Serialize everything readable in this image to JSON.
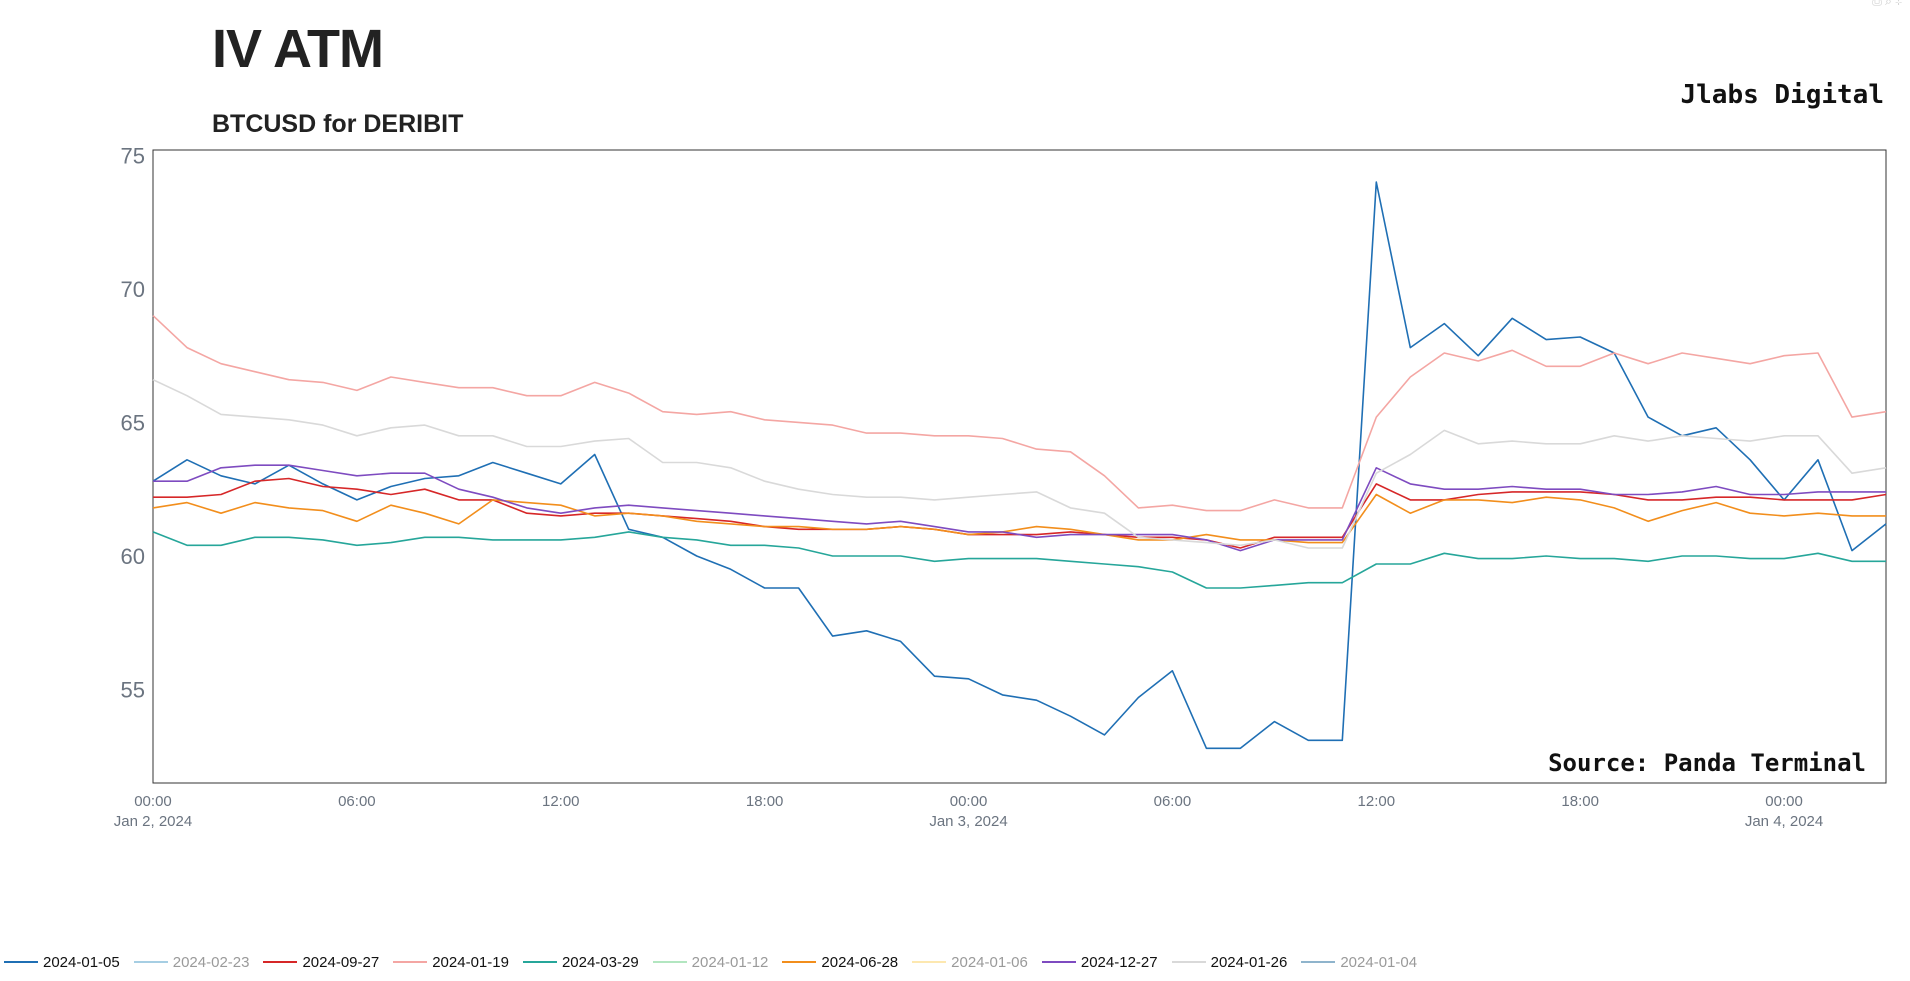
{
  "header": {
    "title": "IV ATM",
    "subtitle": "BTCUSD for DERIBIT",
    "brand": "Jlabs Digital",
    "source_note": "Source: Panda Terminal"
  },
  "chart_data": {
    "type": "line",
    "title": "IV ATM",
    "subtitle": "BTCUSD for DERIBIT",
    "xlabel": "",
    "ylabel": "",
    "x_start": "2024-01-02T00:00",
    "x_step_hours": 1,
    "x_range_hours": [
      0,
      51
    ],
    "ylim": [
      51.5,
      75.2
    ],
    "yticks": [
      55,
      60,
      65,
      70,
      75
    ],
    "xticks": [
      {
        "hour": 0,
        "time": "00:00",
        "date": "Jan 2, 2024"
      },
      {
        "hour": 6,
        "time": "06:00",
        "date": ""
      },
      {
        "hour": 12,
        "time": "12:00",
        "date": ""
      },
      {
        "hour": 18,
        "time": "18:00",
        "date": ""
      },
      {
        "hour": 24,
        "time": "00:00",
        "date": "Jan 3, 2024"
      },
      {
        "hour": 30,
        "time": "06:00",
        "date": ""
      },
      {
        "hour": 36,
        "time": "12:00",
        "date": ""
      },
      {
        "hour": 42,
        "time": "18:00",
        "date": ""
      },
      {
        "hour": 48,
        "time": "00:00",
        "date": "Jan 4, 2024"
      }
    ],
    "grid": false,
    "legend_position": "bottom",
    "series": [
      {
        "name": "2024-01-05",
        "color": "#1f6fb4",
        "visible": true,
        "values": [
          62.8,
          63.6,
          63.0,
          62.7,
          63.4,
          62.7,
          62.1,
          62.6,
          62.9,
          63.0,
          63.5,
          63.1,
          62.7,
          63.8,
          61.0,
          60.7,
          60.0,
          59.5,
          58.8,
          58.8,
          57.0,
          57.2,
          56.8,
          55.5,
          55.4,
          54.8,
          54.6,
          54.0,
          53.3,
          54.7,
          55.7,
          52.8,
          52.8,
          53.8,
          53.1,
          53.1,
          74.0,
          67.8,
          68.7,
          67.5,
          68.9,
          68.1,
          68.2,
          67.6,
          65.2,
          64.5,
          64.8,
          63.6,
          62.1,
          63.6,
          60.2,
          61.2
        ]
      },
      {
        "name": "2024-02-23",
        "color": "#a6cee3",
        "visible": false,
        "values": []
      },
      {
        "name": "2024-09-27",
        "color": "#d62728",
        "visible": true,
        "values": [
          62.2,
          62.2,
          62.3,
          62.8,
          62.9,
          62.6,
          62.5,
          62.3,
          62.5,
          62.1,
          62.1,
          61.6,
          61.5,
          61.6,
          61.6,
          61.5,
          61.4,
          61.3,
          61.1,
          61.0,
          61.0,
          61.0,
          61.1,
          61.0,
          60.8,
          60.8,
          60.8,
          60.9,
          60.8,
          60.7,
          60.7,
          60.6,
          60.3,
          60.7,
          60.7,
          60.7,
          62.7,
          62.1,
          62.1,
          62.3,
          62.4,
          62.4,
          62.4,
          62.3,
          62.1,
          62.1,
          62.2,
          62.2,
          62.1,
          62.1,
          62.1,
          62.3
        ]
      },
      {
        "name": "2024-01-19",
        "color": "#f4a6a3",
        "visible": true,
        "values": [
          69.0,
          67.8,
          67.2,
          66.9,
          66.6,
          66.5,
          66.2,
          66.7,
          66.5,
          66.3,
          66.3,
          66.0,
          66.0,
          66.5,
          66.1,
          65.4,
          65.3,
          65.4,
          65.1,
          65.0,
          64.9,
          64.6,
          64.6,
          64.5,
          64.5,
          64.4,
          64.0,
          63.9,
          63.0,
          61.8,
          61.9,
          61.7,
          61.7,
          62.1,
          61.8,
          61.8,
          65.2,
          66.7,
          67.6,
          67.3,
          67.7,
          67.1,
          67.1,
          67.6,
          67.2,
          67.6,
          67.4,
          67.2,
          67.5,
          67.6,
          65.2,
          65.4
        ]
      },
      {
        "name": "2024-03-29",
        "color": "#26a69a",
        "visible": true,
        "values": [
          60.9,
          60.4,
          60.4,
          60.7,
          60.7,
          60.6,
          60.4,
          60.5,
          60.7,
          60.7,
          60.6,
          60.6,
          60.6,
          60.7,
          60.9,
          60.7,
          60.6,
          60.4,
          60.4,
          60.3,
          60.0,
          60.0,
          60.0,
          59.8,
          59.9,
          59.9,
          59.9,
          59.8,
          59.7,
          59.6,
          59.4,
          58.8,
          58.8,
          58.9,
          59.0,
          59.0,
          59.7,
          59.7,
          60.1,
          59.9,
          59.9,
          60.0,
          59.9,
          59.9,
          59.8,
          60.0,
          60.0,
          59.9,
          59.9,
          60.1,
          59.8,
          59.8
        ]
      },
      {
        "name": "2024-01-12",
        "color": "#b2e6c0",
        "visible": false,
        "values": []
      },
      {
        "name": "2024-06-28",
        "color": "#f28e1c",
        "visible": true,
        "values": [
          61.8,
          62.0,
          61.6,
          62.0,
          61.8,
          61.7,
          61.3,
          61.9,
          61.6,
          61.2,
          62.1,
          62.0,
          61.9,
          61.5,
          61.6,
          61.5,
          61.3,
          61.2,
          61.1,
          61.1,
          61.0,
          61.0,
          61.1,
          61.0,
          60.8,
          60.9,
          61.1,
          61.0,
          60.8,
          60.6,
          60.6,
          60.8,
          60.6,
          60.6,
          60.5,
          60.5,
          62.3,
          61.6,
          62.1,
          62.1,
          62.0,
          62.2,
          62.1,
          61.8,
          61.3,
          61.7,
          62.0,
          61.6,
          61.5,
          61.6,
          61.5,
          61.5
        ]
      },
      {
        "name": "2024-01-06",
        "color": "#fde8b0",
        "visible": false,
        "values": []
      },
      {
        "name": "2024-12-27",
        "color": "#7e4bc0",
        "visible": true,
        "values": [
          62.8,
          62.8,
          63.3,
          63.4,
          63.4,
          63.2,
          63.0,
          63.1,
          63.1,
          62.5,
          62.2,
          61.8,
          61.6,
          61.8,
          61.9,
          61.8,
          61.7,
          61.6,
          61.5,
          61.4,
          61.3,
          61.2,
          61.3,
          61.1,
          60.9,
          60.9,
          60.7,
          60.8,
          60.8,
          60.8,
          60.8,
          60.6,
          60.2,
          60.6,
          60.6,
          60.6,
          63.3,
          62.7,
          62.5,
          62.5,
          62.6,
          62.5,
          62.5,
          62.3,
          62.3,
          62.4,
          62.6,
          62.3,
          62.3,
          62.4,
          62.4,
          62.4
        ]
      },
      {
        "name": "2024-01-26",
        "color": "#d9d9d9",
        "visible": true,
        "values": [
          66.6,
          66.0,
          65.3,
          65.2,
          65.1,
          64.9,
          64.5,
          64.8,
          64.9,
          64.5,
          64.5,
          64.1,
          64.1,
          64.3,
          64.4,
          63.5,
          63.5,
          63.3,
          62.8,
          62.5,
          62.3,
          62.2,
          62.2,
          62.1,
          62.2,
          62.3,
          62.4,
          61.8,
          61.6,
          60.7,
          60.6,
          60.5,
          60.4,
          60.6,
          60.3,
          60.3,
          63.1,
          63.8,
          64.7,
          64.2,
          64.3,
          64.2,
          64.2,
          64.5,
          64.3,
          64.5,
          64.4,
          64.3,
          64.5,
          64.5,
          63.1,
          63.3
        ]
      },
      {
        "name": "2024-01-04",
        "color": "#8fb4cc",
        "visible": false,
        "values": []
      }
    ]
  },
  "modebar": {
    "icons": "camera-icon zoom-icon pan-icon"
  }
}
